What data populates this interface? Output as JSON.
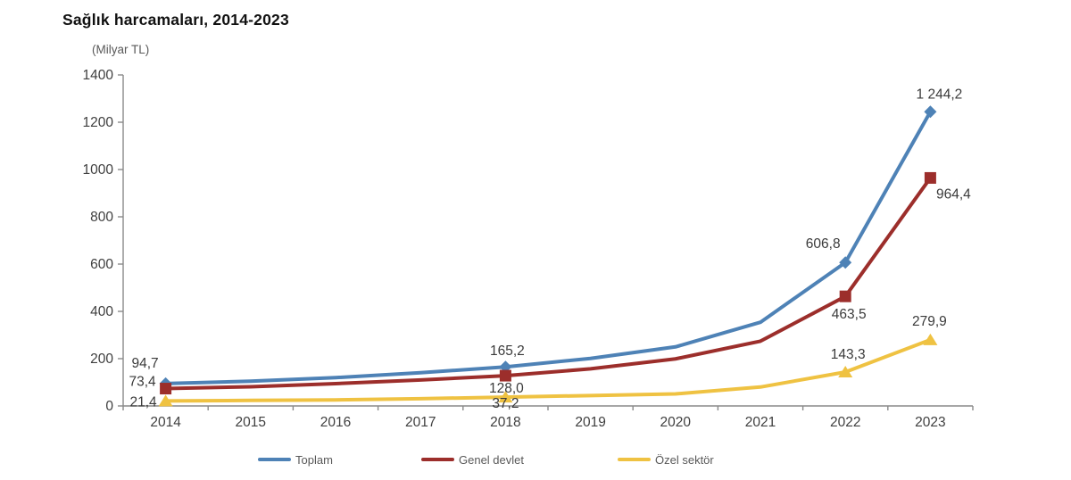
{
  "chart_data": {
    "type": "line",
    "title": "Sağlık harcamaları, 2014-2023",
    "unit": "(Milyar TL)",
    "categories": [
      "2014",
      "2015",
      "2016",
      "2017",
      "2018",
      "2019",
      "2020",
      "2021",
      "2022",
      "2023"
    ],
    "ylim": [
      0,
      1400
    ],
    "ytick_step": 200,
    "yticks": [
      0,
      200,
      400,
      600,
      800,
      1000,
      1200,
      1400
    ],
    "grid": "off",
    "legend_position": "bottom",
    "axis_color": "#8a8a8a",
    "tick_label_color": "#3f3f3f",
    "data_label_color": "#3a3a3a",
    "series": [
      {
        "name": "Toplam",
        "color": "#4e82b6",
        "marker": "diamond",
        "values": [
          94.7,
          104.6,
          119.8,
          140.6,
          165.2,
          201.0,
          249.9,
          353.9,
          606.8,
          1244.2
        ],
        "point_labels": {
          "0": "94,7",
          "4": "165,2",
          "8": "606,8",
          "9": "1 244,2"
        }
      },
      {
        "name": "Genel devlet",
        "color": "#9c2e2b",
        "marker": "square",
        "values": [
          73.4,
          81.3,
          94.3,
          109.9,
          128.0,
          156.9,
          199.0,
          273.9,
          463.5,
          964.4
        ],
        "point_labels": {
          "0": "73,4",
          "4": "128,0",
          "8": "463,5",
          "9": "964,4"
        }
      },
      {
        "name": "Özel sektör",
        "color": "#efc242",
        "marker": "triangle",
        "values": [
          21.4,
          23.4,
          25.5,
          30.7,
          37.2,
          44.1,
          50.8,
          80.0,
          143.3,
          279.9
        ],
        "point_labels": {
          "0": "21,4",
          "4": "37,2",
          "8": "143,3",
          "9": "279,9"
        }
      }
    ]
  }
}
